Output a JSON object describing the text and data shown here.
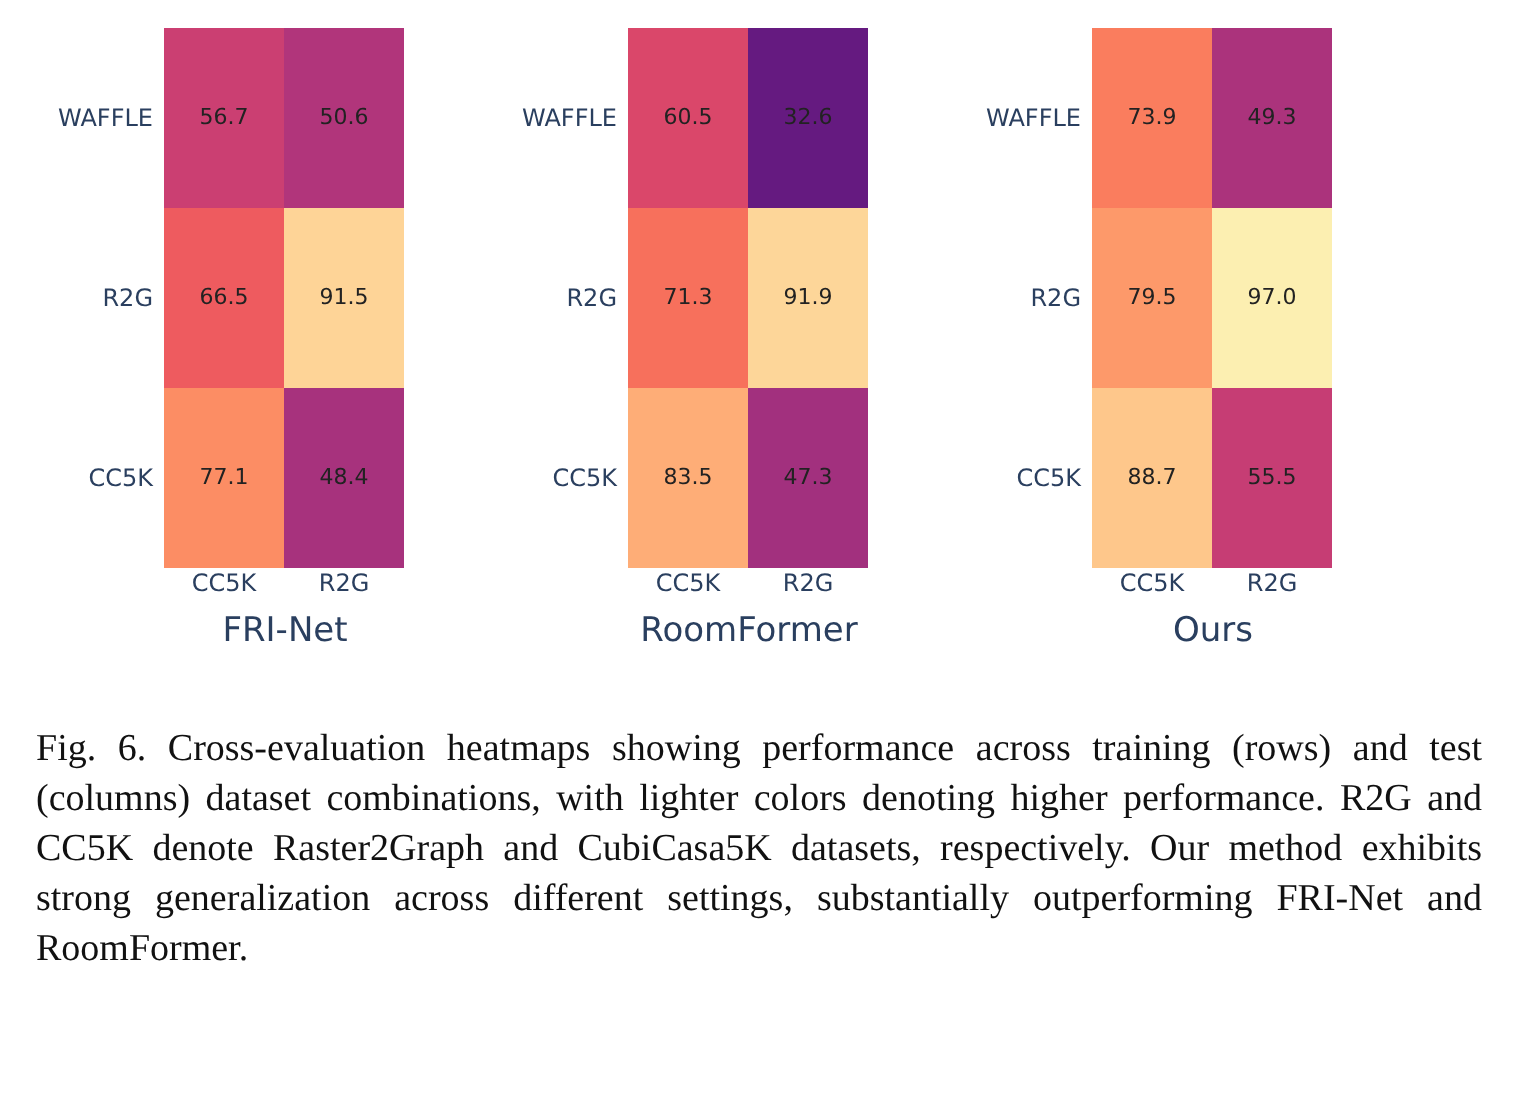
{
  "chart_data": [
    {
      "type": "heatmap",
      "title": "FRI-Net",
      "categories": [
        "CC5K",
        "R2G"
      ],
      "y_categories": [
        "WAFFLE",
        "R2G",
        "CC5K"
      ],
      "cells": [
        [
          56.7,
          50.6
        ],
        [
          66.5,
          91.5
        ],
        [
          77.1,
          48.4
        ]
      ],
      "data_labels": true
    },
    {
      "type": "heatmap",
      "title": "RoomFormer",
      "categories": [
        "CC5K",
        "R2G"
      ],
      "y_categories": [
        "WAFFLE",
        "R2G",
        "CC5K"
      ],
      "cells": [
        [
          60.5,
          32.6
        ],
        [
          71.3,
          91.9
        ],
        [
          83.5,
          47.3
        ]
      ],
      "data_labels": true
    },
    {
      "type": "heatmap",
      "title": "Ours",
      "categories": [
        "CC5K",
        "R2G"
      ],
      "y_categories": [
        "WAFFLE",
        "R2G",
        "CC5K"
      ],
      "cells": [
        [
          73.9,
          49.3
        ],
        [
          79.5,
          97.0
        ],
        [
          88.7,
          55.5
        ]
      ],
      "cell_labels": [
        [
          "73.9",
          "49.3"
        ],
        [
          "79.5",
          "97.0"
        ],
        [
          "88.7",
          "55.5"
        ]
      ],
      "data_labels": true,
      "annotations": [
        "Fig. 6.  Cross-evaluation heatmaps showing performance across training (rows) and test (columns) dataset combinations, with lighter colors denoting higher performance. R2G and CC5K denote Raster2Graph and CubiCasa5K datasets, respectively. Our method exhibits strong generalization across different settings, substantially outperforming FRI-Net and RoomFormer."
      ]
    }
  ]
}
